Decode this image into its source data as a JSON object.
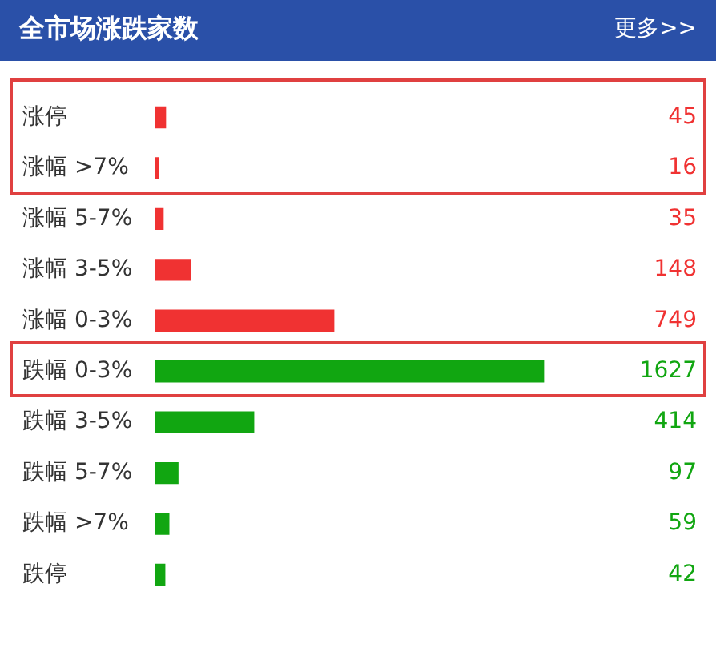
{
  "chart_data": {
    "type": "bar",
    "orientation": "horizontal",
    "title": "全市场涨跌家数",
    "annotations": [
      "更多>>"
    ],
    "categories": [
      "涨停",
      "涨幅 >7%",
      "涨幅 5-7%",
      "涨幅 3-5%",
      "涨幅 0-3%",
      "跌幅 0-3%",
      "跌幅 3-5%",
      "跌幅 5-7%",
      "跌幅 >7%",
      "跌停"
    ],
    "values": [
      45,
      16,
      35,
      148,
      749,
      1627,
      414,
      97,
      59,
      42
    ],
    "colors": [
      "#f03232",
      "#f03232",
      "#f03232",
      "#f03232",
      "#f03232",
      "#11a611",
      "#11a611",
      "#11a611",
      "#11a611",
      "#11a611"
    ],
    "data_labels": true,
    "legend": false,
    "tick_labels": "y"
  }
}
